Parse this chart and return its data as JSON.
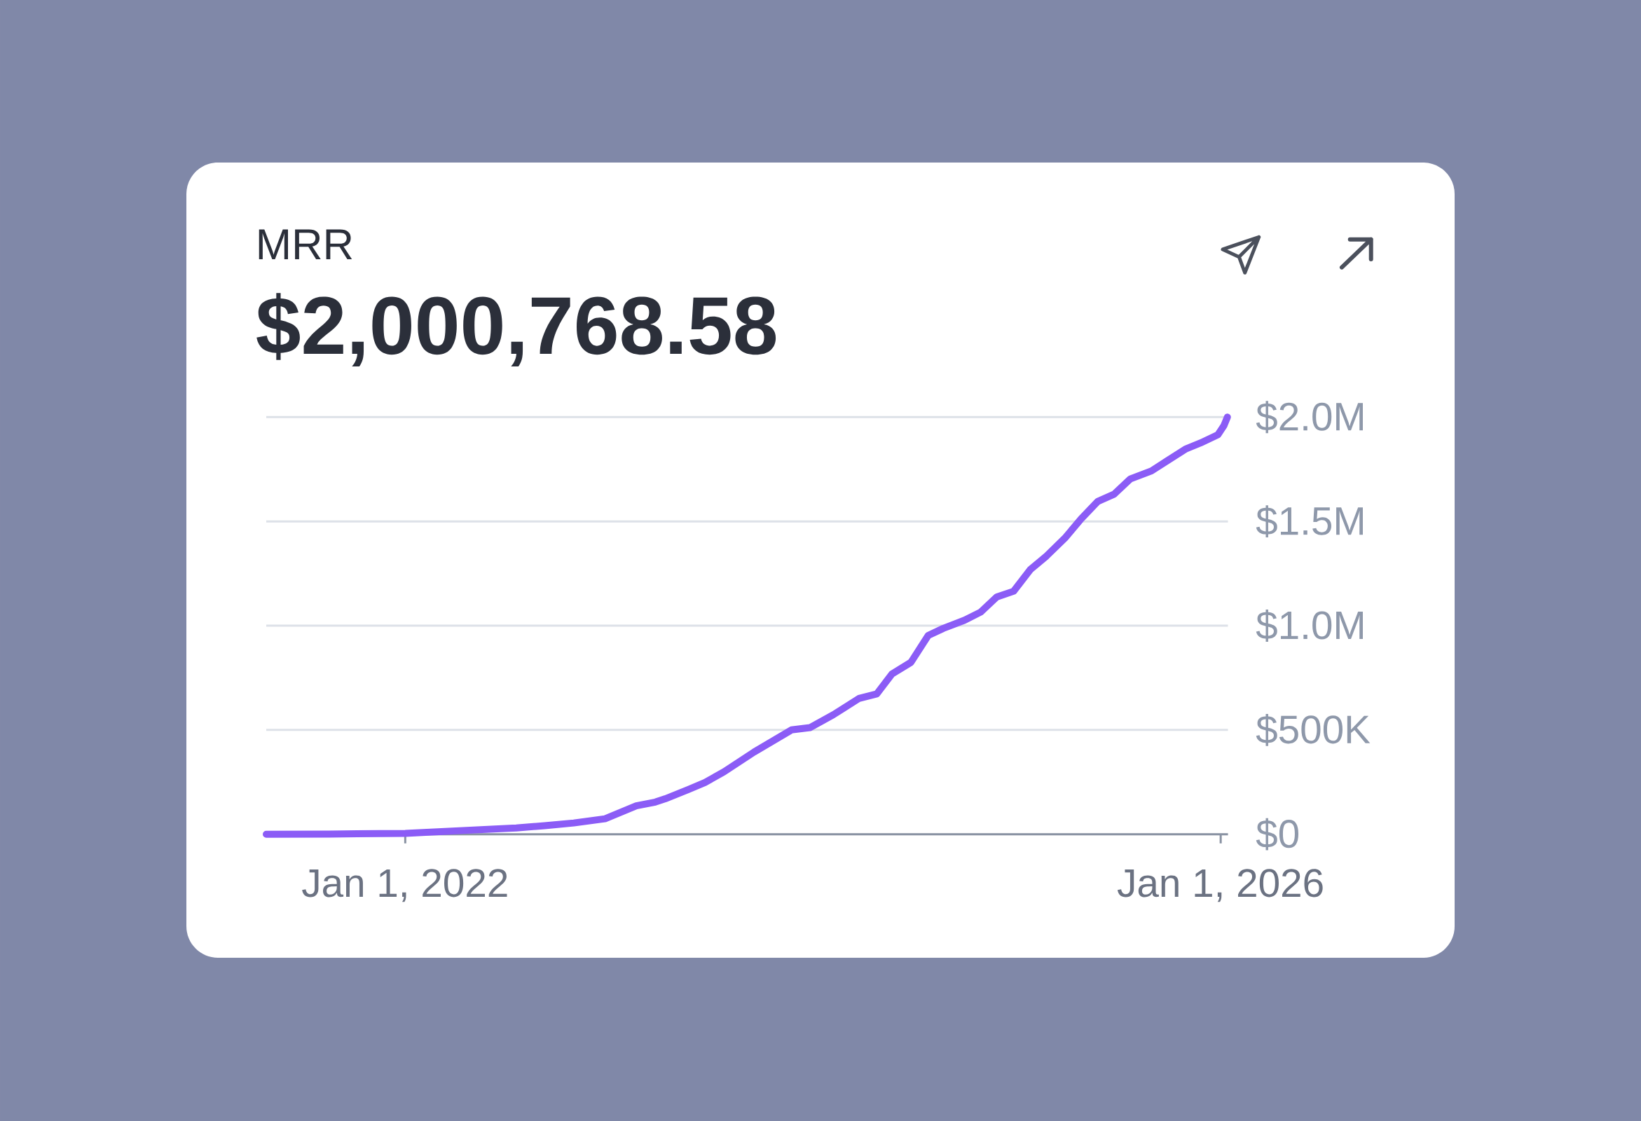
{
  "chart_data": {
    "type": "line",
    "title": "MRR",
    "subtitle": "$2,000,768.58",
    "x": [
      "2021-04-27",
      "2021-08-18",
      "2022-01-01",
      "2022-04-08",
      "2022-07-19",
      "2022-09-08",
      "2022-10-30",
      "2022-12-25",
      "2023-02-19",
      "2023-03-25",
      "2023-04-12",
      "2023-05-24",
      "2023-06-22",
      "2023-07-26",
      "2023-09-18",
      "2023-11-24",
      "2023-12-27",
      "2024-02-07",
      "2024-03-24",
      "2024-04-25",
      "2024-05-22",
      "2024-06-25",
      "2024-07-26",
      "2024-08-22",
      "2024-09-29",
      "2024-10-28",
      "2024-11-26",
      "2024-12-26",
      "2025-01-25",
      "2025-02-23",
      "2025-03-29",
      "2025-04-26",
      "2025-05-26",
      "2025-06-24",
      "2025-07-23",
      "2025-08-30",
      "2025-09-28",
      "2025-10-31",
      "2025-11-26",
      "2025-12-27",
      "2026-01-07",
      "2026-01-13"
    ],
    "values": [
      0,
      1000,
      4000,
      17000,
      30000,
      41000,
      54000,
      74000,
      136000,
      154000,
      170000,
      215000,
      248000,
      299000,
      394000,
      500000,
      511000,
      573000,
      651000,
      673000,
      768000,
      824000,
      953000,
      987000,
      1026000,
      1065000,
      1138000,
      1165000,
      1269000,
      1334000,
      1423000,
      1512000,
      1596000,
      1630000,
      1703000,
      1742000,
      1792000,
      1848000,
      1876000,
      1915000,
      1960000,
      2000000
    ],
    "color": "#8b5cf6",
    "xlim": [
      "2021-04-27",
      "2026-01-14"
    ],
    "xticks": [
      {
        "value": "2022-01-01",
        "label": "Jan 1, 2022"
      },
      {
        "value": "2026-01-01",
        "label": "Jan 1, 2026"
      }
    ],
    "ylim": [
      0,
      2000000
    ],
    "yticks": [
      {
        "value": 0,
        "label": "$0"
      },
      {
        "value": 500000,
        "label": "$500K"
      },
      {
        "value": 1000000,
        "label": "$1.0M"
      },
      {
        "value": 1500000,
        "label": "$1.5M"
      },
      {
        "value": 2000000,
        "label": "$2.0M"
      }
    ],
    "grid": "y"
  }
}
